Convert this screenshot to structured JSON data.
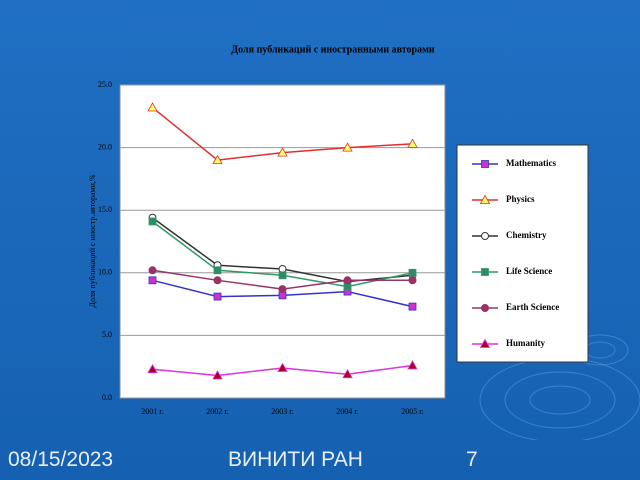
{
  "chart_data": {
    "type": "line",
    "title": "Доля публикаций с иностранными авторами",
    "y_label": "Доля публикаций с иностр.авторами,%",
    "categories": [
      "2001 г.",
      "2002 г.",
      "2003 г.",
      "2004 г.",
      "2005 г."
    ],
    "ylim": [
      0,
      25
    ],
    "yticks": [
      {
        "value": 0,
        "label": "0.0"
      },
      {
        "value": 5,
        "label": "5.0"
      },
      {
        "value": 10,
        "label": "10.0"
      },
      {
        "value": 15,
        "label": "15.0"
      },
      {
        "value": 20,
        "label": "20.0"
      },
      {
        "value": 25,
        "label": "25.0"
      }
    ],
    "grid": true,
    "legend": "right",
    "series": [
      {
        "name": "Mathematics",
        "color": "#3333cc",
        "marker": "square",
        "marker_color": "#cc33cc",
        "values": [
          9.4,
          8.1,
          8.2,
          8.5,
          7.3
        ]
      },
      {
        "name": "Physics",
        "color": "#e03030",
        "marker": "triangle",
        "marker_color": "#ffff66",
        "values": [
          23.2,
          19.0,
          19.6,
          20.0,
          20.3
        ]
      },
      {
        "name": "Chemistry",
        "color": "#333333",
        "marker": "circle",
        "marker_color": "#ffffff",
        "values": [
          14.4,
          10.6,
          10.3,
          9.3,
          9.8
        ]
      },
      {
        "name": "Life Science",
        "color": "#339966",
        "marker": "square",
        "marker_color": "#2e8b6a",
        "values": [
          14.1,
          10.2,
          9.8,
          8.9,
          10.0
        ]
      },
      {
        "name": "Earth Science",
        "color": "#993366",
        "marker": "circle",
        "marker_color": "#993366",
        "values": [
          10.2,
          9.4,
          8.7,
          9.4,
          9.4
        ]
      },
      {
        "name": "Humanity",
        "color": "#dd33dd",
        "marker": "triangle",
        "marker_color": "#aa0022",
        "values": [
          2.3,
          1.8,
          2.4,
          1.9,
          2.6
        ]
      }
    ]
  },
  "footer": {
    "date": "08/15/2023",
    "org": "ВИНИТИ РАН",
    "page": "7"
  }
}
